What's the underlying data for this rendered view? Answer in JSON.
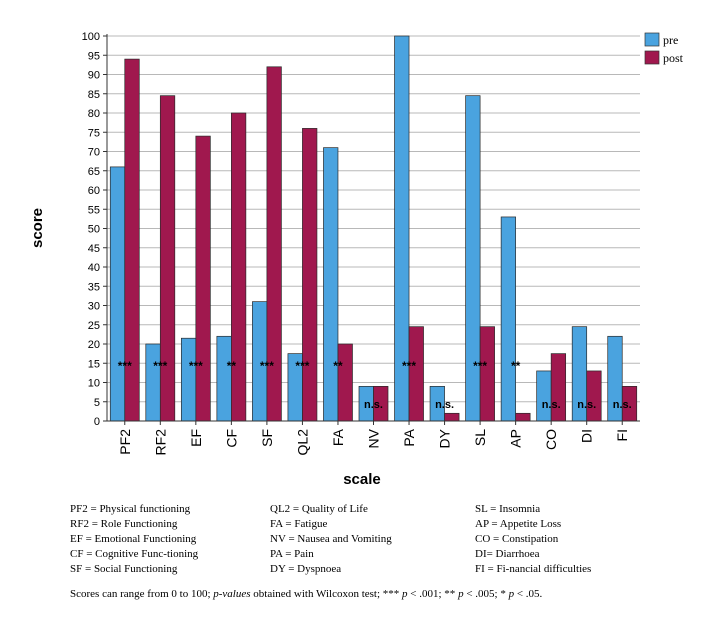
{
  "chart_data": {
    "type": "bar",
    "title": "",
    "xlabel": "scale",
    "ylabel": "score",
    "ylim": [
      0,
      100
    ],
    "yticks": [
      0,
      5,
      10,
      15,
      20,
      25,
      30,
      35,
      40,
      45,
      50,
      55,
      60,
      65,
      70,
      75,
      80,
      85,
      90,
      95,
      100
    ],
    "categories": [
      "PF2",
      "RF2",
      "EF",
      "CF",
      "SF",
      "QL2",
      "FA",
      "NV",
      "PA",
      "DY",
      "SL",
      "AP",
      "CO",
      "DI",
      "FI"
    ],
    "series": [
      {
        "name": "pre",
        "color": "#4aa3df",
        "values": [
          66,
          20,
          21.5,
          22,
          31,
          17.5,
          71,
          9,
          100,
          9,
          84.5,
          53,
          13,
          24.5,
          22
        ]
      },
      {
        "name": "post",
        "color": "#a0184e",
        "values": [
          94,
          84.5,
          74,
          80,
          92,
          76,
          20,
          9,
          24.5,
          2,
          24.5,
          2,
          17.5,
          13,
          9
        ]
      }
    ],
    "annotations": [
      "***",
      "***",
      "***",
      "**",
      "***",
      "***",
      "**",
      "n.s.",
      "***",
      "n.s.",
      "***",
      "**",
      "n.s.",
      "n.s.",
      "n.s."
    ],
    "legend_position": "top-right",
    "grid": true
  },
  "legend": {
    "abbreviations": [
      [
        "PF2 = Physical functioning",
        "RF2 = Role Functioning",
        "EF = Emotional Functioning",
        "CF = Cognitive Func-tioning",
        "SF = Social Functioning"
      ],
      [
        "QL2 = Quality of Life",
        "FA = Fatigue",
        "NV = Nausea and Vomiting",
        "PA = Pain",
        "DY = Dyspnoea"
      ],
      [
        "SL = Insomnia",
        "AP = Appetite Loss",
        "CO = Constipation",
        "DI= Diarrhoea",
        "FI = Fi-nancial difficulties"
      ]
    ]
  },
  "note": {
    "part1": "Scores can range from 0 to 100; ",
    "part2": "p-values",
    "part3": " obtained with Wilcoxon test; *** ",
    "p1": "p",
    "part4": " < .001; ** ",
    "p2": "p",
    "part5": " < .005; * ",
    "p3": "p",
    "part6": " < .05."
  }
}
